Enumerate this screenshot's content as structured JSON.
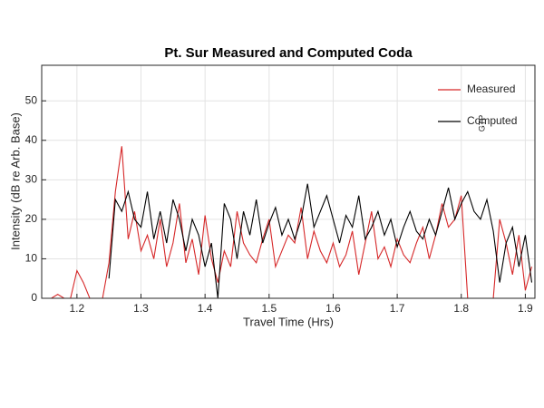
{
  "chart_data": {
    "type": "line",
    "title": "Pt. Sur Measured and Computed Coda",
    "xlabel": "Travel Time (Hrs)",
    "ylabel": "Intensity (dB re Arb. Base)",
    "annotation": "GTP",
    "x": [
      1.15,
      1.16,
      1.17,
      1.18,
      1.19,
      1.2,
      1.21,
      1.22,
      1.23,
      1.24,
      1.25,
      1.26,
      1.27,
      1.28,
      1.29,
      1.3,
      1.31,
      1.32,
      1.33,
      1.34,
      1.35,
      1.36,
      1.37,
      1.38,
      1.39,
      1.4,
      1.41,
      1.42,
      1.43,
      1.44,
      1.45,
      1.46,
      1.47,
      1.48,
      1.49,
      1.5,
      1.51,
      1.52,
      1.53,
      1.54,
      1.55,
      1.56,
      1.57,
      1.58,
      1.59,
      1.6,
      1.61,
      1.62,
      1.63,
      1.64,
      1.65,
      1.66,
      1.67,
      1.68,
      1.69,
      1.7,
      1.71,
      1.72,
      1.73,
      1.74,
      1.75,
      1.76,
      1.77,
      1.78,
      1.79,
      1.8,
      1.81,
      1.82,
      1.83,
      1.84,
      1.85,
      1.86,
      1.87,
      1.88,
      1.89,
      1.9,
      1.91
    ],
    "series": [
      {
        "name": "Measured",
        "color": "#d62728",
        "values": [
          0,
          0,
          1,
          0,
          0,
          7,
          4,
          0,
          0,
          0,
          9,
          27,
          38.5,
          15,
          22,
          12,
          16,
          10,
          20,
          8,
          14,
          24,
          9,
          15,
          6,
          21,
          10,
          4,
          12,
          8,
          22,
          14,
          11,
          9,
          15,
          20,
          8,
          12,
          16,
          14,
          23,
          10,
          17,
          12,
          9,
          14,
          8,
          11,
          17,
          6,
          14,
          22,
          10,
          13,
          8,
          15,
          11,
          9,
          14,
          18,
          10,
          16,
          24,
          18,
          20,
          26,
          0,
          0,
          0,
          0,
          0,
          20,
          14,
          6,
          16,
          2,
          8
        ]
      },
      {
        "name": "Computed",
        "color": "#000000",
        "values": [
          null,
          null,
          null,
          null,
          null,
          null,
          null,
          null,
          null,
          null,
          5,
          25,
          22,
          27,
          20,
          18,
          27,
          15,
          22,
          14,
          25,
          20,
          12,
          20,
          16,
          8,
          14,
          0,
          24,
          20,
          10,
          22,
          16,
          25,
          14,
          19,
          23,
          16,
          20,
          15,
          20,
          29,
          18,
          22,
          26,
          20,
          14,
          21,
          18,
          26,
          15,
          18,
          22,
          16,
          20,
          13,
          18,
          22,
          17,
          15,
          20,
          16,
          22,
          28,
          20,
          24,
          27,
          22,
          20,
          25,
          17,
          4,
          14,
          18,
          8,
          16,
          4
        ]
      }
    ],
    "xlim": [
      1.145,
      1.915
    ],
    "ylim": [
      0,
      59
    ],
    "xticks": [
      1.2,
      1.3,
      1.4,
      1.5,
      1.6,
      1.7,
      1.8,
      1.9
    ],
    "yticks": [
      0,
      10,
      20,
      30,
      40,
      50
    ],
    "grid": true,
    "legend": "upper right"
  }
}
